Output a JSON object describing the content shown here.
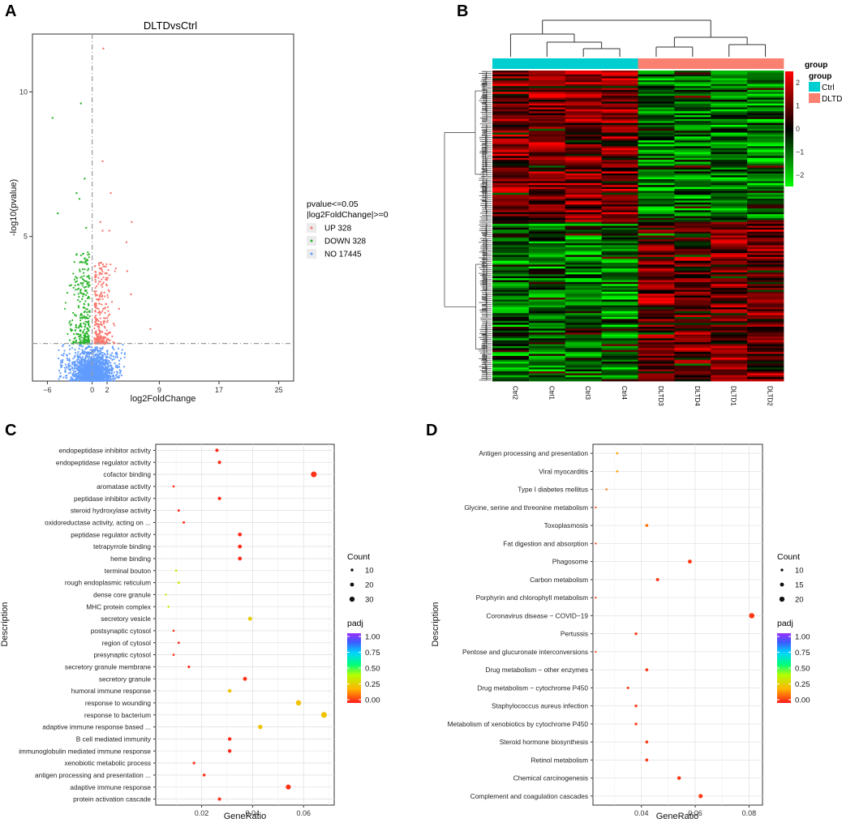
{
  "panels": {
    "a": "A",
    "b": "B",
    "c": "C",
    "d": "D"
  },
  "volcano": {
    "title": "DLTDvsCtrl",
    "xlabel": "log2FoldChange",
    "ylabel": "-log10(pvalue)",
    "xticks": [
      -6,
      0,
      2,
      9,
      17,
      25
    ],
    "yticks": [
      5,
      10
    ],
    "xlim": [
      -8,
      27
    ],
    "ylim": [
      0,
      12
    ],
    "threshold_y": 1.3,
    "legend_title": [
      "pvalue<=0.05",
      "|log2FoldChange|>=0"
    ],
    "legend": [
      {
        "label": "UP 328",
        "color": "#f8766d"
      },
      {
        "label": "DOWN 328",
        "color": "#2cb52c"
      },
      {
        "label": "NO 17445",
        "color": "#619cff"
      }
    ]
  },
  "heatmap": {
    "columns": [
      "Ctrl2",
      "Ctrl1",
      "Ctrl3",
      "Ctrl4",
      "DLTD3",
      "DLTD4",
      "DLTD1",
      "DLTD2"
    ],
    "groups": [
      "Ctrl",
      "Ctrl",
      "Ctrl",
      "Ctrl",
      "DLTD",
      "DLTD",
      "DLTD",
      "DLTD"
    ],
    "group_colors": {
      "Ctrl": "#00ced1",
      "DLTD": "#fa8072"
    },
    "legend_group_title": "group",
    "legend_group_side_label": "group",
    "legend_items": [
      "Ctrl",
      "DLTD"
    ],
    "scale_ticks": [
      "2",
      "1",
      "0",
      "−1",
      "−2"
    ],
    "scale_range": [
      -2.3,
      2.3
    ]
  },
  "go": {
    "xlabel": "GeneRatio",
    "ylabel": "Description",
    "xticks": [
      0.02,
      0.04,
      0.06
    ],
    "xlim": [
      0.002,
      0.072
    ],
    "count_title": "Count",
    "count_legend": [
      10,
      20,
      30
    ],
    "padj_title": "padj",
    "padj_ticks": [
      "1.00",
      "0.75",
      "0.50",
      "0.25",
      "0.00"
    ]
  },
  "kegg": {
    "xlabel": "GeneRatio",
    "ylabel": "Description",
    "xticks": [
      0.04,
      0.06,
      0.08
    ],
    "xlim": [
      0.022,
      0.085
    ],
    "count_title": "Count",
    "count_legend": [
      10,
      15,
      20
    ],
    "padj_title": "padj",
    "padj_ticks": [
      "1.00",
      "0.75",
      "0.50",
      "0.25",
      "0.00"
    ]
  },
  "chart_data": [
    {
      "type": "scatter",
      "title": "DLTDvsCtrl",
      "xlabel": "log2FoldChange",
      "ylabel": "-log10(pvalue)",
      "xlim": [
        -8,
        27
      ],
      "ylim": [
        0,
        12
      ],
      "series": [
        {
          "name": "UP 328",
          "points": [
            [
              1.5,
              11.5
            ],
            [
              1.4,
              7.6
            ],
            [
              2.5,
              6.5
            ],
            [
              1.1,
              5.5
            ],
            [
              1.4,
              5.2
            ],
            [
              2.3,
              5.2
            ],
            [
              5.3,
              5.5
            ],
            [
              4.6,
              4.8
            ],
            [
              4.7,
              3.8
            ],
            [
              5.2,
              3.0
            ],
            [
              7.8,
              1.8
            ],
            [
              3.6,
              2.5
            ],
            [
              2.0,
              3.5
            ],
            [
              1.2,
              4.1
            ]
          ]
        },
        {
          "name": "DOWN 328",
          "points": [
            [
              -1.5,
              9.6
            ],
            [
              -5.3,
              9.1
            ],
            [
              -4.6,
              5.8
            ],
            [
              -2.1,
              6.5
            ],
            [
              -1.7,
              6.3
            ],
            [
              -1.0,
              7.0
            ],
            [
              -0.8,
              5.3
            ],
            [
              -1.0,
              4.1
            ],
            [
              -2.2,
              3.6
            ],
            [
              -3.0,
              3.3
            ]
          ]
        },
        {
          "name": "NO 17445",
          "points": []
        }
      ]
    },
    {
      "type": "heatmap",
      "columns": [
        "Ctrl2",
        "Ctrl1",
        "Ctrl3",
        "Ctrl4",
        "DLTD3",
        "DLTD4",
        "DLTD1",
        "DLTD2"
      ],
      "scale_range": [
        -2.3,
        2.3
      ]
    },
    {
      "type": "scatter",
      "xlabel": "GeneRatio",
      "ylabel": "Description",
      "categories": [
        "endopeptidase inhibitor activity",
        "endopeptidase regulator activity",
        "cofactor binding",
        "aromatase activity",
        "peptidase inhibitor activity",
        "steroid hydroxylase activity",
        "oxidoreductase activity, acting on ...",
        "peptidase regulator activity",
        "tetrapyrrole binding",
        "heme binding",
        "terminal bouton",
        "rough endoplasmic reticulum",
        "dense core granule",
        "MHC protein complex",
        "secretory vesicle",
        "postsynaptic cytosol",
        "region of cytosol",
        "presynaptic cytosol",
        "secretory granule membrane",
        "secretory granule",
        "humoral immune response",
        "response to wounding",
        "response to bacterium",
        "adaptive immune response based ...",
        "B cell mediated immunity",
        "immunoglobulin mediated immune response",
        "xenobiotic metabolic process",
        "antigen processing and presentation ...",
        "adaptive immune response",
        "protein activation cascade"
      ],
      "x": [
        0.026,
        0.027,
        0.064,
        0.009,
        0.027,
        0.011,
        0.013,
        0.035,
        0.035,
        0.035,
        0.01,
        0.011,
        0.006,
        0.007,
        0.039,
        0.009,
        0.011,
        0.009,
        0.015,
        0.037,
        0.031,
        0.058,
        0.068,
        0.043,
        0.031,
        0.031,
        0.017,
        0.021,
        0.054,
        0.027
      ],
      "count": [
        14,
        15,
        35,
        5,
        15,
        6,
        7,
        19,
        19,
        19,
        5,
        6,
        3,
        4,
        21,
        5,
        6,
        5,
        8,
        20,
        17,
        31,
        36,
        23,
        17,
        17,
        9,
        11,
        29,
        15
      ],
      "padj": [
        0.02,
        0.02,
        0.03,
        0.02,
        0.02,
        0.02,
        0.02,
        0.02,
        0.02,
        0.02,
        0.32,
        0.33,
        0.35,
        0.33,
        0.27,
        0.03,
        0.02,
        0.03,
        0.02,
        0.03,
        0.24,
        0.24,
        0.24,
        0.24,
        0.02,
        0.02,
        0.03,
        0.03,
        0.03,
        0.03
      ]
    },
    {
      "type": "scatter",
      "xlabel": "GeneRatio",
      "ylabel": "Description",
      "categories": [
        "Antigen processing and presentation",
        "Viral myocarditis",
        "Type I diabetes mellitus",
        "Glycine, serine and threonine metabolism",
        "Toxoplasmosis",
        "Fat digestion and absorption",
        "Phagosome",
        "Carbon metabolism",
        "Porphyrin and chlorophyll metabolism",
        "Coronavirus disease − COVID−19",
        "Pertussis",
        "Pentose and glucuronate interconversions",
        "Drug metabolism − other enzymes",
        "Drug metabolism − cytochrome P450",
        "Staphylococcus aureus infection",
        "Metabolism of xenobiotics by cytochrome P450",
        "Steroid hormone biosynthesis",
        "Retinol metabolism",
        "Chemical carcinogenesis",
        "Complement and coagulation cascades"
      ],
      "x": [
        0.031,
        0.031,
        0.027,
        0.023,
        0.042,
        0.023,
        0.058,
        0.046,
        0.023,
        0.081,
        0.038,
        0.023,
        0.042,
        0.035,
        0.038,
        0.038,
        0.042,
        0.042,
        0.054,
        0.062
      ],
      "count": [
        8,
        8,
        7,
        6,
        11,
        6,
        15,
        12,
        6,
        21,
        10,
        6,
        11,
        9,
        10,
        10,
        11,
        11,
        14,
        16
      ],
      "padj": [
        0.18,
        0.18,
        0.12,
        0.05,
        0.12,
        0.04,
        0.04,
        0.04,
        0.04,
        0.04,
        0.04,
        0.04,
        0.04,
        0.04,
        0.04,
        0.04,
        0.04,
        0.04,
        0.04,
        0.04
      ]
    }
  ]
}
